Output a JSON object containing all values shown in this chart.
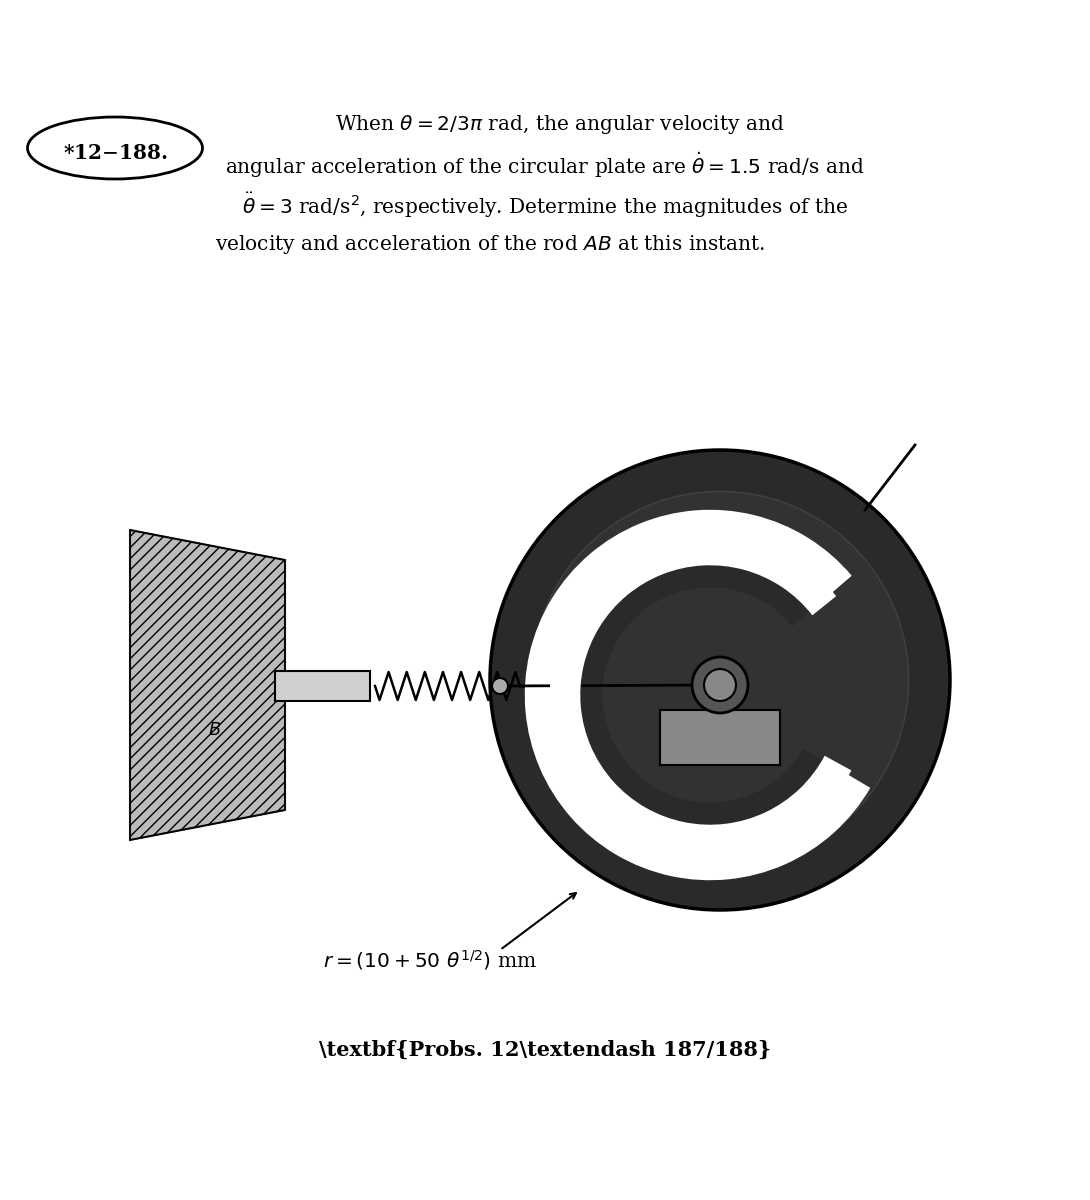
{
  "bg_color": "#ffffff",
  "fig_width": 10.9,
  "fig_height": 12.0,
  "dpi": 100,
  "problem_number": "*12-188.",
  "text_line1": "When θ = 2/3π rad, the angular velocity and",
  "text_line2": "angular acceleration of the circular plate are θ̇ = 1.5 rad/s and",
  "text_line3": "θ̈ = 3 rad/s², respectively. Determine the magnitudes of the",
  "text_line4": "velocity and acceleration of the rod AB at this instant.",
  "formula": "r = (10 + 50 θ¹ᐟ²) mm",
  "formula_display": "r = (10 + 50 θ^{1/2}) mm",
  "caption": "Probs. 12-187/188",
  "text_color": "#000000",
  "title_fontsize": 15,
  "body_fontsize": 15,
  "caption_fontsize": 15
}
